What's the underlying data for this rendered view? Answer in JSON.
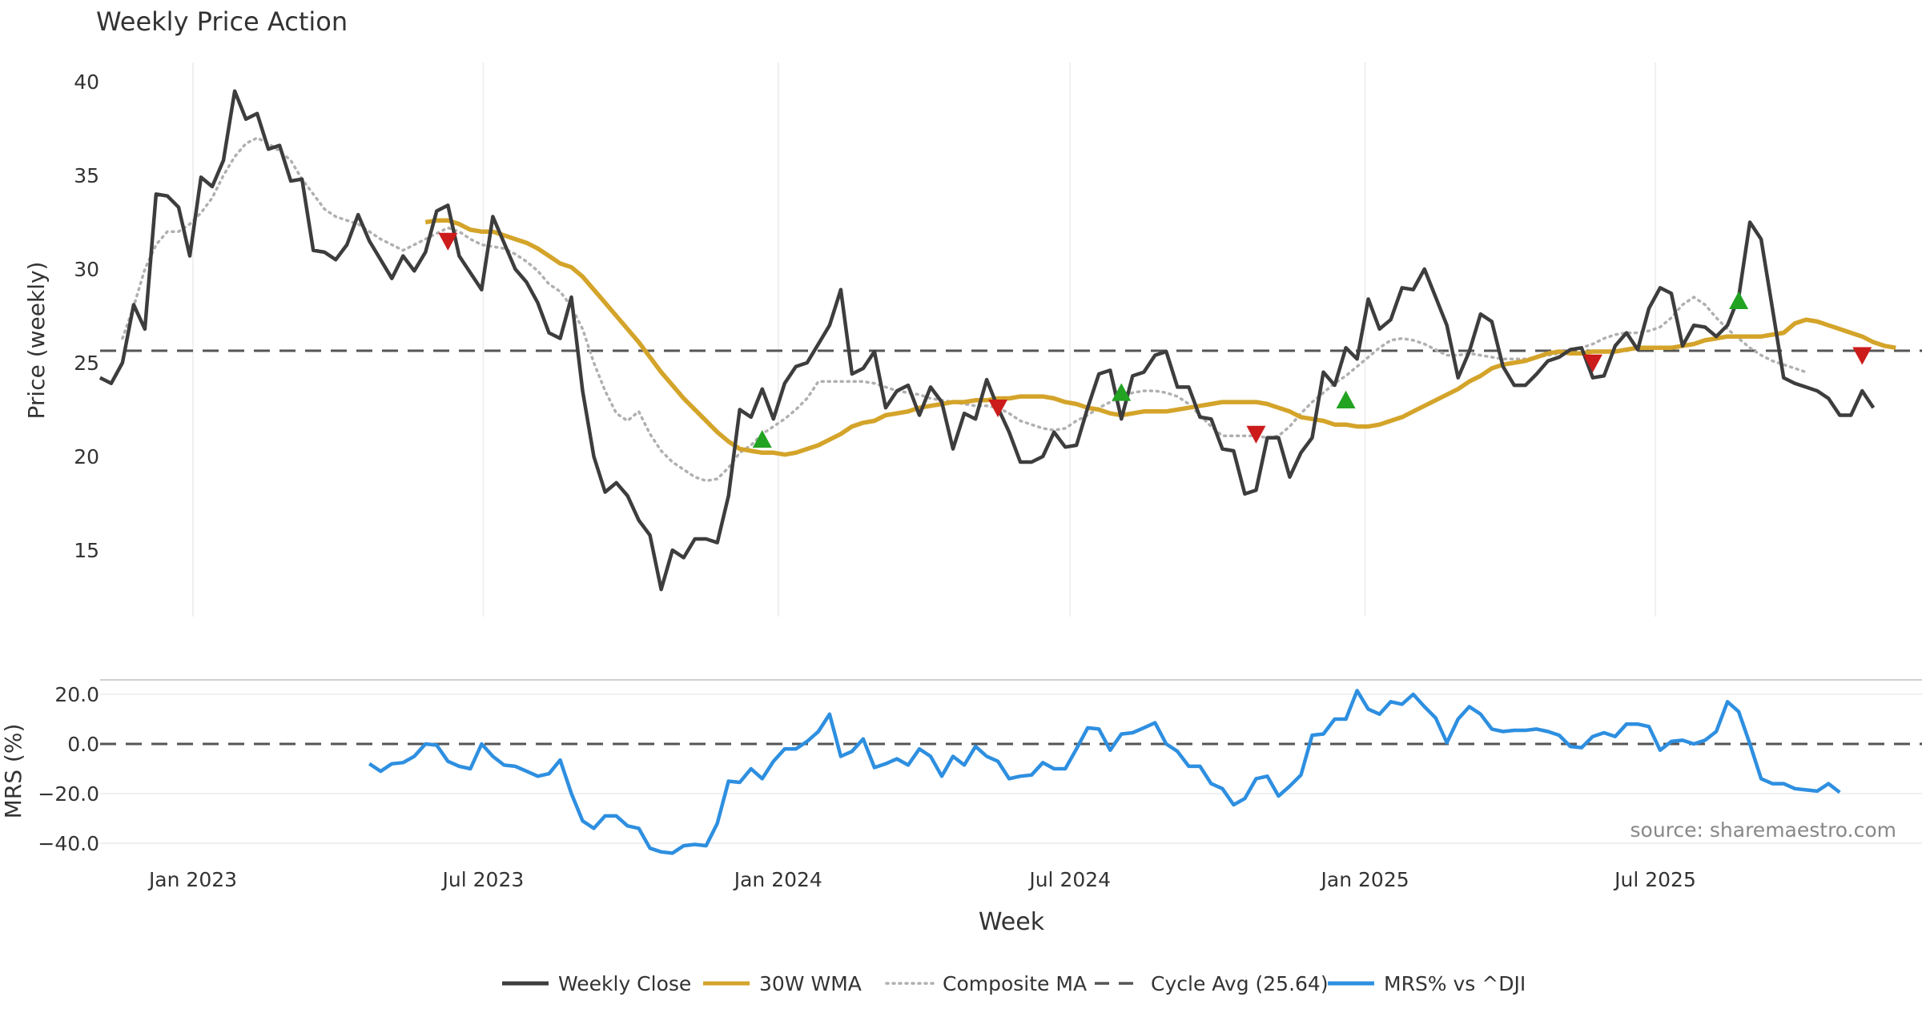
{
  "chart_data": [
    {
      "type": "line",
      "title": "Weekly Price Action",
      "xlabel": "",
      "ylabel": "Price (weekly)",
      "ylim": [
        11.5,
        41.0
      ],
      "yticks": [
        15,
        20,
        25,
        30,
        35,
        40
      ],
      "x_start": "2022-11-04",
      "x_step_days": 7,
      "grid": {
        "x": true,
        "y": false
      },
      "cycle_avg": 25.64,
      "series": [
        {
          "name": "Weekly Close",
          "color": "#3d3d3d",
          "values": [
            24.2,
            23.9,
            25.0,
            28.1,
            26.8,
            34.0,
            33.9,
            33.3,
            30.7,
            34.9,
            34.4,
            35.8,
            39.5,
            38.0,
            38.3,
            36.4,
            36.6,
            34.7,
            34.8,
            31.0,
            30.9,
            30.5,
            31.3,
            32.9,
            31.5,
            30.5,
            29.5,
            30.7,
            29.9,
            30.9,
            33.1,
            33.4,
            30.7,
            29.8,
            28.9,
            32.8,
            31.4,
            30.0,
            29.3,
            28.2,
            26.6,
            26.3,
            28.5,
            23.5,
            20.0,
            18.1,
            18.6,
            17.9,
            16.6,
            15.8,
            12.9,
            15.0,
            14.6,
            15.6,
            15.6,
            15.4,
            17.9,
            22.5,
            22.1,
            23.6,
            22.0,
            23.9,
            24.8,
            25.0,
            26.0,
            27.0,
            28.9,
            24.4,
            24.7,
            25.6,
            22.6,
            23.5,
            23.8,
            22.2,
            23.7,
            22.9,
            20.4,
            22.3,
            22.0,
            24.1,
            22.6,
            21.3,
            19.7,
            19.7,
            20.0,
            21.3,
            20.5,
            20.6,
            22.6,
            24.4,
            24.6,
            22.0,
            24.3,
            24.5,
            25.4,
            25.6,
            23.7,
            23.7,
            22.1,
            22.0,
            20.4,
            20.3,
            18.0,
            18.2,
            21.0,
            21.0,
            18.9,
            20.2,
            21.0,
            24.5,
            23.8,
            25.8,
            25.2,
            28.4,
            26.8,
            27.3,
            29.0,
            28.9,
            30.0,
            28.5,
            27.0,
            24.2,
            25.6,
            27.6,
            27.2,
            24.8,
            23.8,
            23.8,
            24.4,
            25.1,
            25.3,
            25.7,
            25.8,
            24.2,
            24.3,
            25.9,
            26.6,
            25.7,
            27.9,
            29.0,
            28.7,
            25.9,
            27.0,
            26.9,
            26.4,
            27.0,
            28.5,
            32.5,
            31.6,
            27.9,
            24.2,
            23.9,
            23.7,
            23.5,
            23.1,
            22.2,
            22.2,
            23.5,
            22.6
          ]
        },
        {
          "name": "30W WMA",
          "color": "#d4a42a",
          "start_index": 29,
          "values": [
            32.5,
            32.6,
            32.6,
            32.4,
            32.1,
            32.0,
            32.0,
            31.8,
            31.6,
            31.4,
            31.1,
            30.7,
            30.3,
            30.1,
            29.6,
            28.9,
            28.2,
            27.5,
            26.8,
            26.1,
            25.3,
            24.5,
            23.8,
            23.1,
            22.5,
            21.9,
            21.3,
            20.8,
            20.4,
            20.3,
            20.2,
            20.2,
            20.1,
            20.2,
            20.4,
            20.6,
            20.9,
            21.2,
            21.6,
            21.8,
            21.9,
            22.2,
            22.3,
            22.4,
            22.6,
            22.7,
            22.8,
            22.9,
            22.9,
            23.0,
            23.0,
            23.1,
            23.1,
            23.2,
            23.2,
            23.2,
            23.1,
            22.9,
            22.8,
            22.6,
            22.5,
            22.3,
            22.2,
            22.3,
            22.4,
            22.4,
            22.4,
            22.5,
            22.6,
            22.7,
            22.8,
            22.9,
            22.9,
            22.9,
            22.9,
            22.8,
            22.6,
            22.4,
            22.1,
            22.0,
            21.9,
            21.7,
            21.7,
            21.6,
            21.6,
            21.7,
            21.9,
            22.1,
            22.4,
            22.7,
            23.0,
            23.3,
            23.6,
            24.0,
            24.3,
            24.7,
            24.9,
            25.0,
            25.1,
            25.3,
            25.5,
            25.6,
            25.5,
            25.5,
            25.6,
            25.6,
            25.6,
            25.7,
            25.8,
            25.8,
            25.8,
            25.8,
            25.9,
            26.0,
            26.2,
            26.3,
            26.4,
            26.4,
            26.4,
            26.4,
            26.5,
            26.6,
            27.1,
            27.3,
            27.2,
            27.0,
            26.8,
            26.6,
            26.4,
            26.1,
            25.9,
            25.8
          ]
        },
        {
          "name": "Composite MA",
          "color": "#b0b0b0",
          "start_index": 2,
          "values": [
            26.3,
            28.0,
            30.0,
            31.3,
            32.0,
            32.0,
            32.4,
            33.0,
            33.8,
            35.0,
            36.0,
            36.7,
            37.0,
            36.7,
            36.3,
            35.8,
            34.8,
            34.0,
            33.2,
            32.8,
            32.6,
            32.4,
            32.0,
            31.6,
            31.3,
            31.0,
            31.3,
            31.6,
            31.9,
            32.2,
            32.0,
            31.6,
            31.3,
            31.2,
            31.1,
            30.8,
            30.4,
            29.9,
            29.2,
            28.8,
            28.0,
            26.8,
            25.0,
            23.5,
            22.3,
            21.9,
            22.4,
            21.2,
            20.3,
            19.7,
            19.3,
            18.9,
            18.7,
            18.8,
            19.4,
            20.2,
            20.6,
            21.2,
            21.6,
            22.0,
            22.5,
            23.1,
            24.0,
            24.0,
            24.0,
            24.0,
            24.0,
            23.9,
            23.7,
            23.5,
            23.4,
            23.3,
            23.1,
            23.0,
            22.9,
            22.8,
            22.7,
            22.7,
            22.6,
            22.3,
            21.9,
            21.7,
            21.5,
            21.4,
            21.5,
            21.9,
            22.2,
            22.6,
            22.9,
            23.2,
            23.4,
            23.5,
            23.5,
            23.4,
            23.2,
            22.8,
            22.2,
            21.6,
            21.1,
            21.1,
            21.1,
            21.1,
            21.0,
            21.1,
            21.6,
            22.3,
            22.9,
            23.4,
            23.9,
            24.3,
            24.8,
            25.3,
            25.8,
            26.2,
            26.3,
            26.2,
            26.0,
            25.7,
            25.4,
            25.4,
            25.5,
            25.4,
            25.3,
            25.2,
            25.2,
            25.2,
            25.3,
            25.4,
            25.5,
            25.7,
            25.8,
            26.0,
            26.3,
            26.5,
            26.6,
            26.6,
            26.7,
            26.9,
            27.4,
            28.1,
            28.5,
            28.1,
            27.4,
            26.8,
            26.3,
            25.8,
            25.4,
            25.1,
            24.9,
            24.7,
            24.5
          ]
        },
        {
          "name": "Cycle Avg (25.64)",
          "color": "#555555",
          "constant": 25.64
        }
      ],
      "markers": [
        {
          "type": "sell",
          "color": "#cc1b1b",
          "index": 31,
          "value": 31.5
        },
        {
          "type": "buy",
          "color": "#22a322",
          "index": 59,
          "value": 20.9
        },
        {
          "type": "sell",
          "color": "#cc1b1b",
          "index": 80,
          "value": 22.6
        },
        {
          "type": "buy",
          "color": "#22a322",
          "index": 91,
          "value": 23.4
        },
        {
          "type": "sell",
          "color": "#cc1b1b",
          "index": 103,
          "value": 21.2
        },
        {
          "type": "buy",
          "color": "#22a322",
          "index": 111,
          "value": 23.0
        },
        {
          "type": "sell",
          "color": "#cc1b1b",
          "index": 133,
          "value": 25.0
        },
        {
          "type": "buy",
          "color": "#22a322",
          "index": 146,
          "value": 28.3
        },
        {
          "type": "sell",
          "color": "#cc1b1b",
          "index": 157,
          "value": 25.4
        }
      ]
    },
    {
      "type": "line",
      "title": "",
      "xlabel": "Week",
      "ylabel": "MRS (%)",
      "ylim": [
        -47,
        25
      ],
      "yticks": [
        "20.0",
        "0.0",
        "−20.0",
        "−40.0"
      ],
      "ytick_values": [
        20,
        0,
        -20,
        -40
      ],
      "xticks": [
        "Jan 2023",
        "Jul 2023",
        "Jan 2024",
        "Jul 2024",
        "Jan 2025",
        "Jul 2025"
      ],
      "xtick_dates": [
        "2023-01-01",
        "2023-07-01",
        "2024-01-01",
        "2024-07-01",
        "2025-01-01",
        "2025-07-01"
      ],
      "zero_line": 0,
      "series": [
        {
          "name": "MRS% vs ^DJI",
          "color": "#2e8fe0",
          "start_index": 24,
          "values": [
            -8,
            -11,
            -8,
            -7.5,
            -5,
            0,
            -0.5,
            -7,
            -9,
            -10,
            0,
            -5,
            -8.5,
            -9,
            -11,
            -13,
            -12,
            -6.5,
            -20,
            -31,
            -34,
            -29,
            -29,
            -33,
            -34,
            -42,
            -43.5,
            -44,
            -41,
            -40.5,
            -41,
            -32,
            -15,
            -15.5,
            -10,
            -14,
            -7,
            -2,
            -2,
            1,
            5,
            12,
            -5,
            -3,
            2,
            -9.5,
            -8,
            -6,
            -8.5,
            -2,
            -5,
            -13,
            -5,
            -8.5,
            -1,
            -5,
            -7,
            -14,
            -13,
            -12.5,
            -7.5,
            -10,
            -10,
            -2,
            6.5,
            6,
            -2.5,
            4,
            4.5,
            6.5,
            8.5,
            0,
            -3,
            -9,
            -9,
            -16,
            -18,
            -24.5,
            -22,
            -14,
            -13,
            -21,
            -17,
            -12.5,
            3.5,
            4,
            10,
            10,
            21.5,
            14,
            12,
            17,
            16,
            20,
            15,
            10.5,
            0.5,
            10,
            15,
            12,
            6,
            5,
            5.5,
            5.5,
            6,
            5,
            3.5,
            -1,
            -1.5,
            3,
            4.5,
            3,
            8,
            8,
            7,
            -2.5,
            1,
            1.5,
            0,
            1.5,
            5,
            17,
            13,
            0,
            -14,
            -16,
            -16,
            -18,
            -18.5,
            -19,
            -16,
            -19.5
          ]
        }
      ]
    }
  ],
  "source_text": "source: sharemaestro.com",
  "legend": {
    "items": [
      {
        "label": "Weekly Close",
        "style": "solid",
        "color": "#3d3d3d"
      },
      {
        "label": "30W WMA",
        "style": "solid",
        "color": "#d4a42a"
      },
      {
        "label": "Composite MA",
        "style": "dotted",
        "color": "#b0b0b0"
      },
      {
        "label": "Cycle Avg (25.64)",
        "style": "dashed",
        "color": "#555555"
      },
      {
        "label": "MRS% vs ^DJI",
        "style": "solid",
        "color": "#2e8fe0"
      }
    ]
  }
}
